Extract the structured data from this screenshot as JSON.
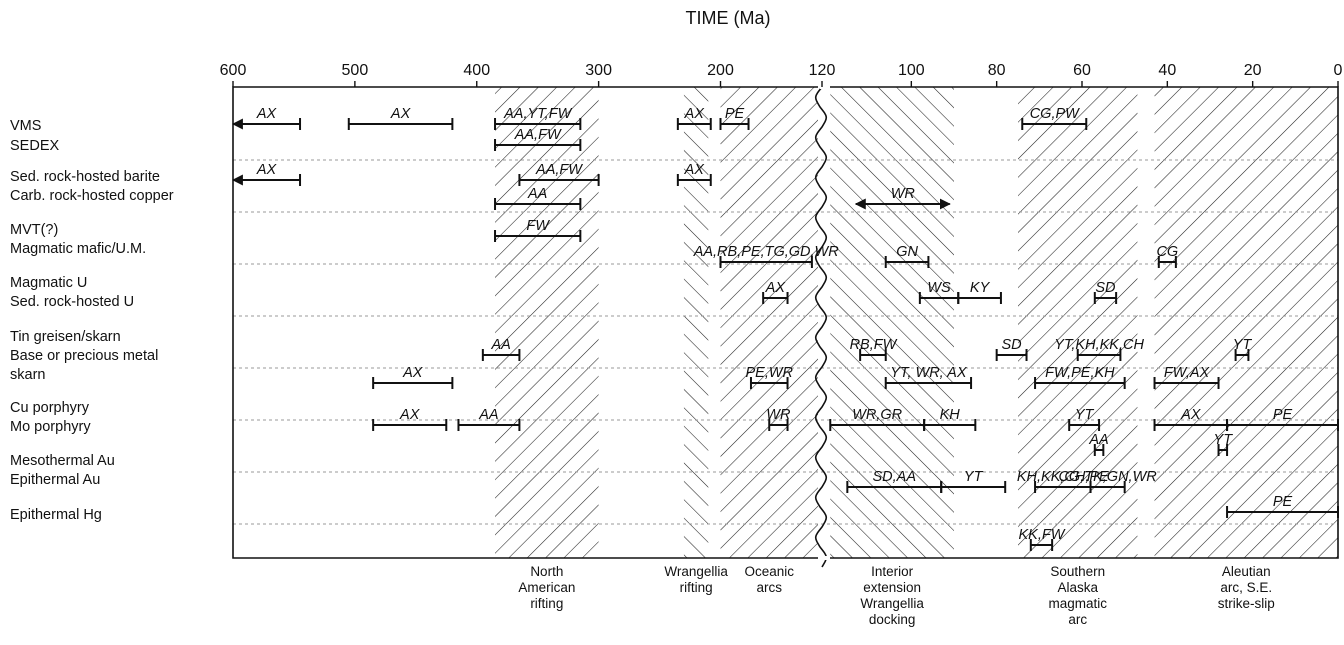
{
  "chart_data": {
    "type": "timeline",
    "title": "TIME (Ma)",
    "axis": {
      "unit": "Ma",
      "break_at": 120,
      "left_segment": [
        600,
        120
      ],
      "right_segment": [
        120,
        0
      ],
      "ticks": [
        600,
        500,
        400,
        300,
        200,
        120,
        100,
        80,
        60,
        40,
        20,
        0
      ]
    },
    "categories": [
      "VMS",
      "SEDEX",
      "Sed. rock-hosted barite",
      "Carb. rock-hosted copper",
      "MVT(?)",
      "Magmatic mafic/U.M.",
      "Magmatic U",
      "Sed. rock-hosted U",
      "Tin greisen/skarn",
      "Base or precious metal",
      "skarn",
      "Cu porphyry",
      "Mo porphyry",
      "Mesothermal Au",
      "Epithermal Au",
      "Epithermal Hg"
    ],
    "periods": [
      {
        "from": 385,
        "to": 300,
        "hatch": "forward",
        "label": [
          "North",
          "American",
          "rifting"
        ]
      },
      {
        "from": 230,
        "to": 210,
        "hatch": "back",
        "label": [
          "Wrangellia",
          "rifting"
        ]
      },
      {
        "from": 200,
        "to": 120,
        "hatch": "forward",
        "label": [
          "Oceanic",
          "arcs"
        ]
      },
      {
        "from": 119,
        "to": 90,
        "hatch": "back",
        "label": [
          "Interior",
          "extension",
          "Wrangellia",
          "docking"
        ]
      },
      {
        "from": 75,
        "to": 47,
        "hatch": "forward",
        "label": [
          "Southern",
          "Alaska",
          "magmatic",
          "arc"
        ]
      },
      {
        "from": 43,
        "to": 0,
        "hatch": "forward",
        "label": [
          "Aleutian",
          "arc, S.E.",
          "strike-slip"
        ]
      }
    ],
    "ranges": [
      {
        "row": "VMS",
        "labels": "AX",
        "from": 600,
        "to": 545,
        "arrow_start": true
      },
      {
        "row": "VMS",
        "labels": "AX",
        "from": 505,
        "to": 420
      },
      {
        "row": "VMS",
        "labels": "AA,YT,FW",
        "from": 385,
        "to": 315
      },
      {
        "row": "VMS",
        "labels": "AX",
        "from": 235,
        "to": 208
      },
      {
        "row": "VMS",
        "labels": "PE",
        "from": 200,
        "to": 177
      },
      {
        "row": "VMS",
        "labels": "CG,PW",
        "from": 74,
        "to": 59
      },
      {
        "row": "SEDEX",
        "labels": "AA,FW",
        "from": 385,
        "to": 315
      },
      {
        "row": "Sed. rock-hosted barite",
        "labels": "AX",
        "from": 600,
        "to": 545,
        "arrow_start": true
      },
      {
        "row": "Sed. rock-hosted barite",
        "labels": "AA,FW",
        "from": 365,
        "to": 300
      },
      {
        "row": "Sed. rock-hosted barite",
        "labels": "AX",
        "from": 235,
        "to": 208
      },
      {
        "row": "Carb. rock-hosted copper",
        "labels": "AA",
        "from": 385,
        "to": 315
      },
      {
        "row": "Carb. rock-hosted copper",
        "labels": "WR",
        "from": 113,
        "to": 91,
        "arrow_start": true,
        "arrow_end": true
      },
      {
        "row": "MVT(?)",
        "labels": "FW",
        "from": 385,
        "to": 315
      },
      {
        "row": "Magmatic mafic/U.M.",
        "labels": "AA,RB,PE,TG,GD,WR",
        "from": 200,
        "to": 125
      },
      {
        "row": "Magmatic mafic/U.M.",
        "labels": "GN",
        "from": 106,
        "to": 96
      },
      {
        "row": "Magmatic mafic/U.M.",
        "labels": "CG",
        "from": 42,
        "to": 38
      },
      {
        "row": "Magmatic U",
        "labels": "AX",
        "from": 165,
        "to": 145
      },
      {
        "row": "Sed. rock-hosted U",
        "labels": "WS",
        "from": 98,
        "to": 89
      },
      {
        "row": "Sed. rock-hosted U",
        "labels": "KY",
        "from": 89,
        "to": 79
      },
      {
        "row": "Sed. rock-hosted U",
        "labels": "SD",
        "from": 57,
        "to": 52
      },
      {
        "row": "Tin greisen/skarn",
        "labels": "AA",
        "from": 395,
        "to": 365
      },
      {
        "row": "Tin greisen/skarn",
        "labels": "RB,FW",
        "from": 112,
        "to": 106
      },
      {
        "row": "Tin greisen/skarn",
        "labels": "SD",
        "from": 80,
        "to": 73
      },
      {
        "row": "Tin greisen/skarn",
        "labels": "YT,KH,KK,CH",
        "from": 61,
        "to": 51
      },
      {
        "row": "Tin greisen/skarn",
        "labels": "YT",
        "from": 24,
        "to": 21
      },
      {
        "row": "Base or precious metal",
        "labels": "PE,WR",
        "from": 175,
        "to": 145
      },
      {
        "row": "Base or precious metal",
        "labels": "YT, WR, AX",
        "from": 106,
        "to": 86
      },
      {
        "row": "Base or precious metal",
        "labels": "FW,PE,KH",
        "from": 71,
        "to": 50
      },
      {
        "row": "Base or precious metal",
        "labels": "FW,AX",
        "from": 43,
        "to": 28
      },
      {
        "row": "Base or precious metal",
        "labels": "AX",
        "from": 485,
        "to": 420
      },
      {
        "row": "Cu porphyry",
        "labels": "AX",
        "from": 485,
        "to": 425
      },
      {
        "row": "Cu porphyry",
        "labels": "AA",
        "from": 415,
        "to": 365
      },
      {
        "row": "Cu porphyry",
        "labels": "WR",
        "from": 160,
        "to": 145
      },
      {
        "row": "Cu porphyry",
        "labels": "WR,GR",
        "from": 119,
        "to": 97
      },
      {
        "row": "Cu porphyry",
        "labels": "KH",
        "from": 97,
        "to": 85
      },
      {
        "row": "Cu porphyry",
        "labels": "YT",
        "from": 63,
        "to": 56
      },
      {
        "row": "Cu porphyry",
        "labels": "AX",
        "from": 43,
        "to": 26
      },
      {
        "row": "Cu porphyry",
        "labels": "PE",
        "from": 26,
        "to": 0
      },
      {
        "row": "Mo porphyry",
        "labels": "AA",
        "from": 57,
        "to": 55
      },
      {
        "row": "Mo porphyry",
        "labels": "YT",
        "from": 28,
        "to": 26
      },
      {
        "row": "Mesothermal Au",
        "labels": "KH,KK,CH,PE",
        "from": 71,
        "to": 58
      },
      {
        "row": "Mesothermal Au",
        "labels": "SD,AA",
        "from": 115,
        "to": 93
      },
      {
        "row": "Mesothermal Au",
        "labels": "YT",
        "from": 93,
        "to": 78
      },
      {
        "row": "Mesothermal Au",
        "labels": "CG,TK,GN,WR",
        "from": 58,
        "to": 50
      },
      {
        "row": "Epithermal Au",
        "labels": "PE",
        "from": 26,
        "to": 0
      },
      {
        "row": "Epithermal Hg",
        "labels": "KK,FW",
        "from": 72,
        "to": 67
      }
    ]
  }
}
